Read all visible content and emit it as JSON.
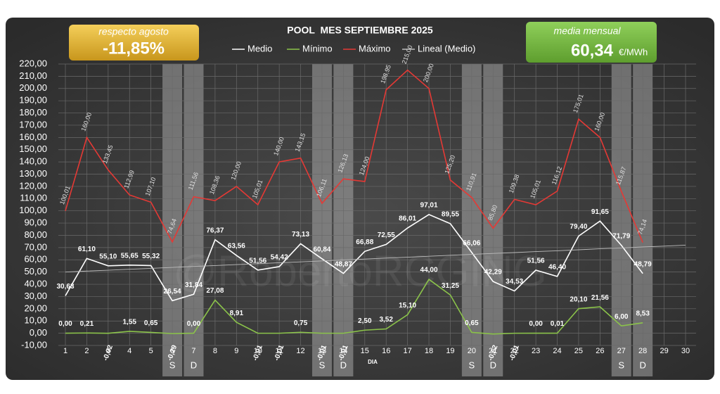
{
  "chart_data": {
    "type": "line",
    "title": "POOL  MES SEPTIEMBRE 2025",
    "xlabel": "DIA",
    "watermark": "@RobertoRCGING",
    "annotations": [
      {
        "caption": "respecto agosto",
        "value": "-11,85%"
      },
      {
        "caption": "media mensual",
        "value": "60,34",
        "unit": "€/MWh"
      }
    ],
    "x": [
      1,
      2,
      3,
      4,
      5,
      6,
      7,
      8,
      9,
      10,
      11,
      12,
      13,
      14,
      15,
      16,
      17,
      18,
      19,
      20,
      21,
      22,
      23,
      24,
      25,
      26,
      27,
      28,
      29,
      30
    ],
    "xlim": [
      1,
      30
    ],
    "ylim": [
      -10,
      220
    ],
    "yticks": [
      {
        "value": -10,
        "label": "-10,00"
      },
      {
        "value": 0,
        "label": "0,00"
      },
      {
        "value": 10,
        "label": "10,00"
      },
      {
        "value": 20,
        "label": "20,00"
      },
      {
        "value": 30,
        "label": "30,00"
      },
      {
        "value": 40,
        "label": "40,00"
      },
      {
        "value": 50,
        "label": "50,00"
      },
      {
        "value": 60,
        "label": "60,00"
      },
      {
        "value": 70,
        "label": "70,00"
      },
      {
        "value": 80,
        "label": "80,00"
      },
      {
        "value": 90,
        "label": "90,00"
      },
      {
        "value": 100,
        "label": "100,00"
      },
      {
        "value": 110,
        "label": "110,00"
      },
      {
        "value": 120,
        "label": "120,00"
      },
      {
        "value": 130,
        "label": "130,00"
      },
      {
        "value": 140,
        "label": "140,00"
      },
      {
        "value": 150,
        "label": "150,00"
      },
      {
        "value": 160,
        "label": "160,00"
      },
      {
        "value": 170,
        "label": "170,00"
      },
      {
        "value": 180,
        "label": "180,00"
      },
      {
        "value": 190,
        "label": "190,00"
      },
      {
        "value": 200,
        "label": "200,00"
      },
      {
        "value": 210,
        "label": "210,00"
      },
      {
        "value": 220,
        "label": "220,00"
      }
    ],
    "grid": true,
    "weekend_bands": [
      {
        "day": 6,
        "label": "S"
      },
      {
        "day": 7,
        "label": "D"
      },
      {
        "day": 13,
        "label": "S"
      },
      {
        "day": 14,
        "label": "D"
      },
      {
        "day": 20,
        "label": "S"
      },
      {
        "day": 21,
        "label": "D"
      },
      {
        "day": 27,
        "label": "S"
      },
      {
        "day": 28,
        "label": "D"
      }
    ],
    "series": [
      {
        "name": "Medio",
        "color": "#ffffff",
        "label_style": "above",
        "values": [
          30.63,
          61.1,
          55.1,
          55.65,
          55.32,
          26.54,
          31.84,
          76.37,
          63.56,
          51.56,
          54.42,
          73.13,
          60.84,
          48.87,
          66.88,
          72.55,
          86.01,
          97.01,
          89.55,
          66.06,
          42.29,
          34.53,
          51.56,
          46.4,
          79.4,
          91.65,
          71.79,
          48.79,
          null,
          null
        ],
        "value_labels": [
          "30,63",
          "61,10",
          "55,10",
          "55,65",
          "55,32",
          "26,54",
          "31,84",
          "76,37",
          "63,56",
          "51,56",
          "54,42",
          "73,13",
          "60,84",
          "48,87",
          "66,88",
          "72,55",
          "86,01",
          "97,01",
          "89,55",
          "66,06",
          "42,29",
          "34,53",
          "51,56",
          "46,40",
          "79,40",
          "91,65",
          "71,79",
          "48,79",
          null,
          null
        ]
      },
      {
        "name": "Mínimo",
        "color": "#8bc34a",
        "label_style": "above",
        "values": [
          0.0,
          0.21,
          -0.02,
          1.55,
          0.65,
          -0.29,
          0.0,
          27.08,
          8.91,
          -0.01,
          -0.01,
          0.75,
          -0.01,
          -0.01,
          2.5,
          3.52,
          15.1,
          44.0,
          31.25,
          0.65,
          -0.62,
          -0.01,
          0.0,
          0.01,
          20.1,
          21.56,
          6.0,
          8.53,
          null,
          null
        ],
        "value_labels": [
          "0,00",
          "0,21",
          "-0,02",
          "1,55",
          "0,65",
          "-0,29",
          "0,00",
          "27,08",
          "8,91",
          "-0,01",
          "-0,01",
          "0,75",
          "-0,01",
          "-0,01",
          "2,50",
          "3,52",
          "15,10",
          "44,00",
          "31,25",
          "0,65",
          "-0,62",
          "-0,01",
          "0,00",
          "0,01",
          "20,10",
          "21,56",
          "6,00",
          "8,53",
          null,
          null
        ]
      },
      {
        "name": "Máximo",
        "color": "#e53935",
        "label_style": "rotated",
        "values": [
          100.01,
          160.0,
          133.45,
          112.99,
          107.1,
          74.64,
          111.56,
          108.36,
          120.0,
          105.01,
          140.0,
          143.15,
          106.11,
          126.13,
          124.0,
          198.95,
          215.0,
          200.0,
          125.2,
          110.91,
          85.8,
          109.38,
          105.01,
          116.12,
          175.01,
          160.0,
          115.87,
          74.14,
          null,
          null
        ],
        "value_labels": [
          "100,01",
          "160,00",
          "133,45",
          "112,99",
          "107,10",
          "74,64",
          "111,56",
          "108,36",
          "120,00",
          "105,01",
          "140,00",
          "143,15",
          "106,11",
          "126,13",
          "124,00",
          "198,95",
          "215,00",
          "200,00",
          "125,20",
          "110,91",
          "85,80",
          "109,38",
          "105,01",
          "116,12",
          "175,01",
          "160,00",
          "115,87",
          "74,14",
          null,
          null
        ]
      },
      {
        "name": "Lineal (Medio)",
        "color": "#bdbdbd",
        "label_style": "none",
        "values": [
          50.0,
          50.8,
          51.5,
          52.3,
          53.0,
          53.8,
          54.6,
          55.3,
          56.1,
          56.8,
          57.6,
          58.3,
          59.1,
          59.9,
          60.6,
          61.4,
          62.1,
          62.9,
          63.7,
          64.4,
          65.2,
          65.9,
          66.7,
          67.4,
          68.2,
          69.0,
          69.7,
          70.5,
          71.2,
          72.0
        ]
      }
    ]
  }
}
